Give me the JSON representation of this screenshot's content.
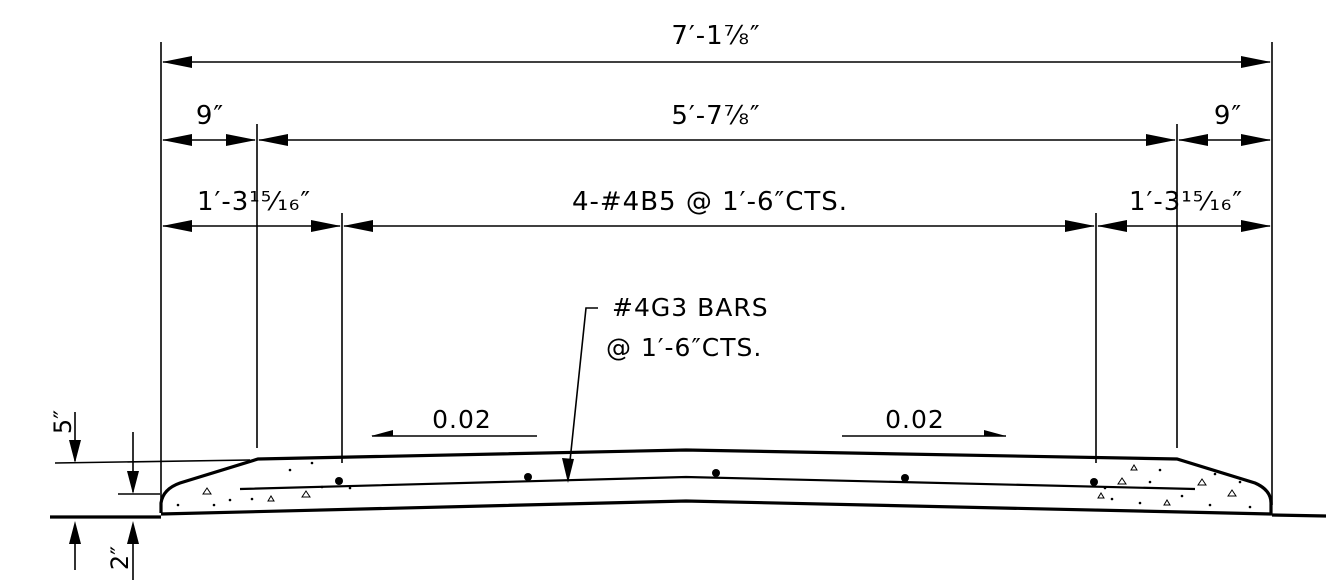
{
  "dimensions": {
    "overall": "7′-1⅞″",
    "left_edge": "9″",
    "center": "5′-7⅞″",
    "right_edge": "9″",
    "left_bar_offset": "1′-3¹⁵⁄₁₆″",
    "bar_spacing": "4-#4B5 @ 1′-6″CTS.",
    "right_bar_offset": "1′-3¹⁵⁄₁₆″"
  },
  "callout": {
    "line1": "#4G3 BARS",
    "line2": "@ 1′-6″CTS."
  },
  "slopes": {
    "left": "0.02",
    "right": "0.02"
  },
  "thickness": {
    "top": "5″",
    "bottom": "2″"
  }
}
